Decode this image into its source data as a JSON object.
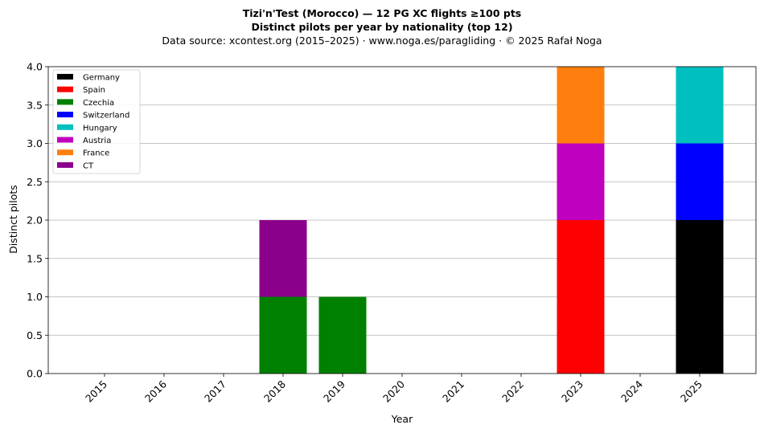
{
  "title": "Tizi'n'Test (Morocco)  —  12 PG XC flights ≥100 pts",
  "subtitle": "Distinct pilots per year by nationality (top 12)",
  "source": "Data source: xcontest.org (2015–2025)  ·  www.noga.es/paragliding  ·  © 2025 Rafał Noga",
  "chart_data": {
    "type": "bar",
    "stacked": true,
    "xlabel": "Year",
    "ylabel": "Distinct pilots",
    "ylim": [
      0,
      4.0
    ],
    "yticks": [
      "0.0",
      "0.5",
      "1.0",
      "1.5",
      "2.0",
      "2.5",
      "3.0",
      "3.5",
      "4.0"
    ],
    "categories": [
      "2015",
      "2016",
      "2017",
      "2018",
      "2019",
      "2020",
      "2021",
      "2022",
      "2023",
      "2024",
      "2025"
    ],
    "grid": "horizontal",
    "legend_position": "top-left",
    "series": [
      {
        "name": "Germany",
        "color": "#000000",
        "values": [
          0,
          0,
          0,
          0,
          0,
          0,
          0,
          0,
          0,
          0,
          2
        ]
      },
      {
        "name": "Spain",
        "color": "#ff0000",
        "values": [
          0,
          0,
          0,
          0,
          0,
          0,
          0,
          0,
          2,
          0,
          0
        ]
      },
      {
        "name": "Czechia",
        "color": "#008000",
        "values": [
          0,
          0,
          0,
          1,
          1,
          0,
          0,
          0,
          0,
          0,
          0
        ]
      },
      {
        "name": "Switzerland",
        "color": "#0000ff",
        "values": [
          0,
          0,
          0,
          0,
          0,
          0,
          0,
          0,
          0,
          0,
          1
        ]
      },
      {
        "name": "Hungary",
        "color": "#00bfbf",
        "values": [
          0,
          0,
          0,
          0,
          0,
          0,
          0,
          0,
          0,
          0,
          1
        ]
      },
      {
        "name": "Austria",
        "color": "#bf00bf",
        "values": [
          0,
          0,
          0,
          0,
          0,
          0,
          0,
          0,
          1,
          0,
          0
        ]
      },
      {
        "name": "France",
        "color": "#ff7f0e",
        "values": [
          0,
          0,
          0,
          0,
          0,
          0,
          0,
          0,
          1,
          0,
          0
        ]
      },
      {
        "name": "CT",
        "color": "#8b008b",
        "values": [
          0,
          0,
          0,
          1,
          0,
          0,
          0,
          0,
          0,
          0,
          0
        ]
      }
    ]
  }
}
